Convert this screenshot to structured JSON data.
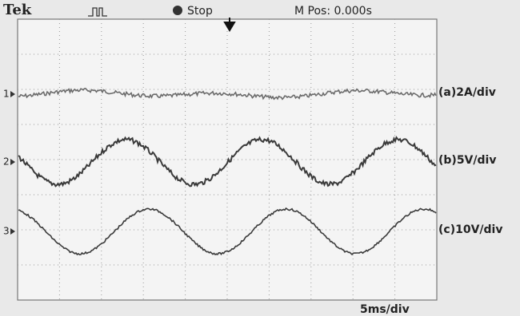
{
  "header": {
    "brand": "Tek",
    "status": "Stop",
    "position": "M Pos: 0.000s"
  },
  "channels": [
    {
      "marker": "1",
      "scale": "(a)2A/div"
    },
    {
      "marker": "2",
      "scale": "(b)5V/div"
    },
    {
      "marker": "3",
      "scale": "(c)10V/div"
    }
  ],
  "footer": {
    "timebase": "5ms/div"
  }
}
